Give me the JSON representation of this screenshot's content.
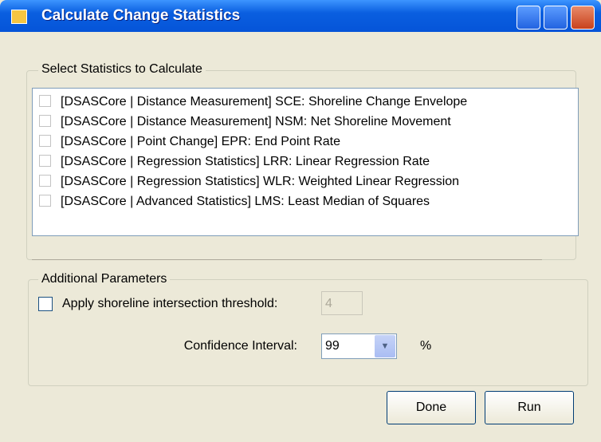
{
  "window": {
    "title": "Calculate Change Statistics"
  },
  "statistics_group": {
    "label": "Select Statistics to Calculate",
    "items": [
      "[DSASCore | Distance Measurement] SCE: Shoreline Change Envelope",
      "[DSASCore | Distance Measurement] NSM: Net Shoreline Movement",
      "[DSASCore | Point Change] EPR: End Point Rate",
      "[DSASCore | Regression Statistics] LRR: Linear Regression Rate",
      "[DSASCore | Regression Statistics] WLR: Weighted Linear Regression",
      "[DSASCore | Advanced Statistics] LMS: Least Median of Squares"
    ]
  },
  "parameters_group": {
    "label": "Additional Parameters",
    "threshold_label": "Apply shoreline intersection threshold:",
    "threshold_value": "4",
    "confidence_label": "Confidence Interval:",
    "confidence_value": "99",
    "confidence_unit": "%"
  },
  "buttons": {
    "done": "Done",
    "run": "Run"
  }
}
